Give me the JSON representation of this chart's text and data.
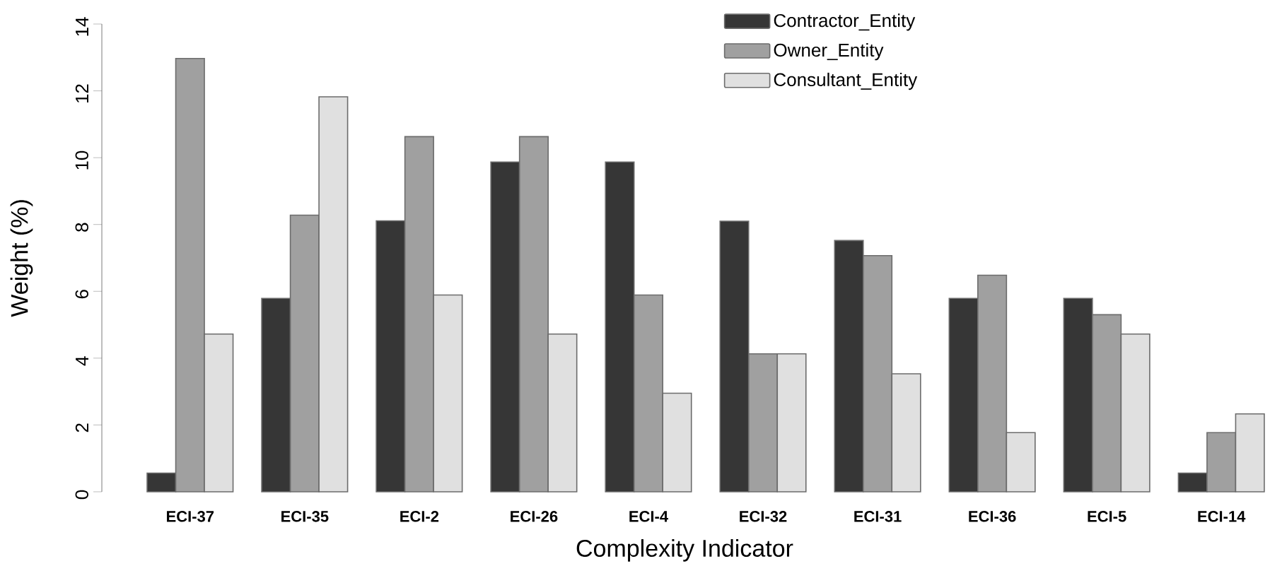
{
  "chart_data": {
    "type": "bar",
    "xlabel": "Complexity Indicator",
    "ylabel": "Weight (%)",
    "categories": [
      "ECI-37",
      "ECI-35",
      "ECI-2",
      "ECI-26",
      "ECI-4",
      "ECI-32",
      "ECI-31",
      "ECI-36",
      "ECI-5",
      "ECI-14"
    ],
    "series": [
      {
        "name": "Contractor_Entity",
        "color": "#363636",
        "values": [
          0.56,
          5.79,
          8.11,
          9.87,
          9.87,
          8.1,
          7.52,
          5.79,
          5.79,
          0.56
        ]
      },
      {
        "name": "Owner_Entity",
        "color": "#a0a0a0",
        "values": [
          12.97,
          8.28,
          10.63,
          10.63,
          5.89,
          4.13,
          7.07,
          6.48,
          5.3,
          1.77
        ]
      },
      {
        "name": "Consultant_Entity",
        "color": "#e0e0e0",
        "values": [
          4.72,
          11.82,
          5.89,
          4.72,
          2.95,
          4.13,
          3.53,
          1.77,
          4.72,
          2.33
        ]
      }
    ],
    "ylim": [
      0,
      14
    ],
    "yticks": [
      0,
      2,
      4,
      6,
      8,
      10,
      12,
      14
    ],
    "legend": "top",
    "grid": false
  }
}
